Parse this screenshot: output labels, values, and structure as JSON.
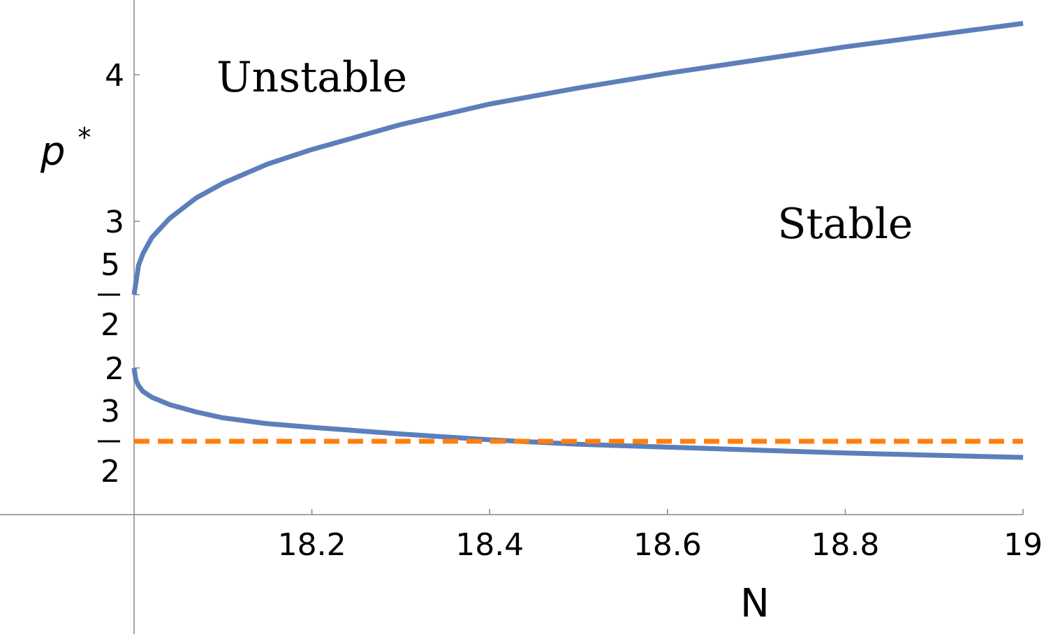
{
  "chart_data": {
    "type": "line",
    "xlabel": "N",
    "ylabel": "p",
    "ylabel_superscript": "*",
    "xlim": [
      17.7,
      19
    ],
    "ylim": [
      1,
      4.5
    ],
    "x_ticks": [
      {
        "value": 18.2,
        "label": "18.2"
      },
      {
        "value": 18.4,
        "label": "18.4"
      },
      {
        "value": 18.6,
        "label": "18.6"
      },
      {
        "value": 18.8,
        "label": "18.8"
      },
      {
        "value": 19,
        "label": "19"
      }
    ],
    "y_ticks": [
      {
        "value": 1.5,
        "numerator": "3",
        "denominator": "2"
      },
      {
        "value": 2,
        "label": "2"
      },
      {
        "value": 2.5,
        "numerator": "5",
        "denominator": "2"
      },
      {
        "value": 3,
        "label": "3"
      },
      {
        "value": 4,
        "label": "4"
      }
    ],
    "series": [
      {
        "role": "unstable-branch",
        "color": "#5b7fba",
        "style": "solid",
        "x": [
          18.0,
          18.005,
          18.01,
          18.02,
          18.04,
          18.07,
          18.1,
          18.15,
          18.2,
          18.3,
          18.4,
          18.5,
          18.6,
          18.7,
          18.8,
          18.9,
          19.0
        ],
        "y": [
          2.5,
          2.7,
          2.78,
          2.89,
          3.02,
          3.16,
          3.26,
          3.39,
          3.49,
          3.66,
          3.8,
          3.91,
          4.01,
          4.1,
          4.19,
          4.27,
          4.35
        ]
      },
      {
        "role": "stable-branch",
        "color": "#5b7fba",
        "style": "solid",
        "x": [
          18.0,
          18.002,
          18.005,
          18.01,
          18.02,
          18.04,
          18.07,
          18.1,
          18.15,
          18.2,
          18.3,
          18.4,
          18.5,
          18.6,
          18.7,
          18.8,
          18.9,
          19.0
        ],
        "y": [
          2.0,
          1.92,
          1.88,
          1.84,
          1.8,
          1.75,
          1.7,
          1.66,
          1.62,
          1.595,
          1.55,
          1.51,
          1.48,
          1.46,
          1.44,
          1.42,
          1.405,
          1.39
        ]
      },
      {
        "role": "reference-line",
        "color": "#ff7f0e",
        "style": "dashed",
        "x": [
          18.0,
          19.0
        ],
        "y": [
          1.5,
          1.5
        ]
      }
    ],
    "annotations": [
      {
        "text": "Unstable",
        "x": 18.2,
        "y": 3.98
      },
      {
        "text": "Stable",
        "x": 18.8,
        "y": 2.98
      }
    ]
  }
}
